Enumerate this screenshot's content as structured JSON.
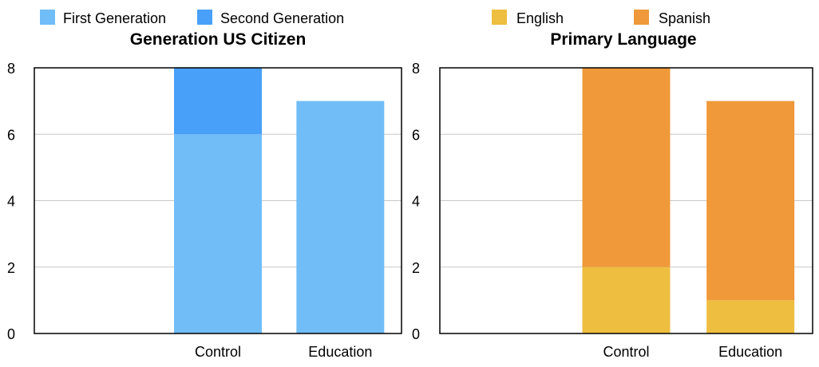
{
  "chart_data": [
    {
      "type": "bar",
      "stacked": true,
      "title": "Generation US Citizen",
      "categories": [
        "",
        "Control",
        "Education"
      ],
      "series": [
        {
          "name": "First Generation",
          "values": [
            0,
            6,
            7
          ],
          "color": "#71BDF8"
        },
        {
          "name": "Second Generation",
          "values": [
            0,
            2,
            0
          ],
          "color": "#48A0F8"
        }
      ],
      "ylim": [
        0,
        8
      ],
      "yticks": [
        "0",
        "2",
        "4",
        "6",
        "8"
      ],
      "grid": true,
      "legend": "top"
    },
    {
      "type": "bar",
      "stacked": true,
      "title": "Primary Language",
      "categories": [
        "",
        "Control",
        "Education"
      ],
      "series": [
        {
          "name": "English",
          "values": [
            0,
            2,
            1
          ],
          "color": "#EDBE40"
        },
        {
          "name": "Spanish",
          "values": [
            0,
            6,
            6
          ],
          "color": "#EF993A"
        }
      ],
      "ylim": [
        0,
        8
      ],
      "yticks": [
        "0",
        "2",
        "4",
        "6",
        "8"
      ],
      "grid": true,
      "legend": "top"
    }
  ]
}
